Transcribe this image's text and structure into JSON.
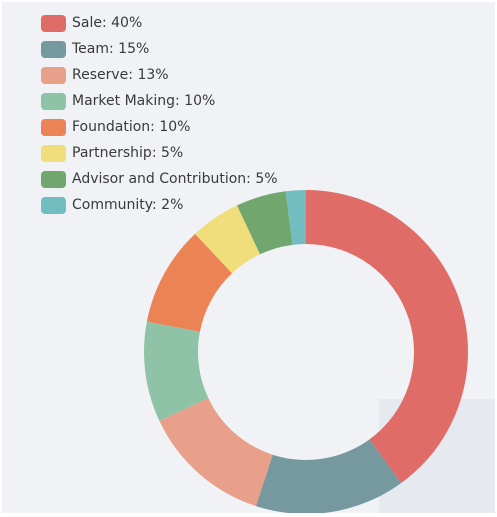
{
  "chart_data": {
    "type": "pie",
    "categories": [
      "Sale",
      "Team",
      "Reserve",
      "Market Making",
      "Foundation",
      "Partnership",
      "Advisor and Contribution",
      "Community"
    ],
    "values": [
      40,
      15,
      13,
      10,
      10,
      5,
      5,
      2
    ],
    "colors": [
      "#e06c67",
      "#76999f",
      "#e8a08a",
      "#8fc3a8",
      "#ec8354",
      "#f0de7a",
      "#71a66e",
      "#72bdc0"
    ],
    "legend": [
      "Sale: 40%",
      "Team: 15%",
      "Reserve: 13%",
      "Market Making: 10%",
      "Foundation: 10%",
      "Partnership: 5%",
      "Advisor and Contribution: 5%",
      "Community: 2%"
    ],
    "legend_position": "top-left",
    "donut": true
  }
}
